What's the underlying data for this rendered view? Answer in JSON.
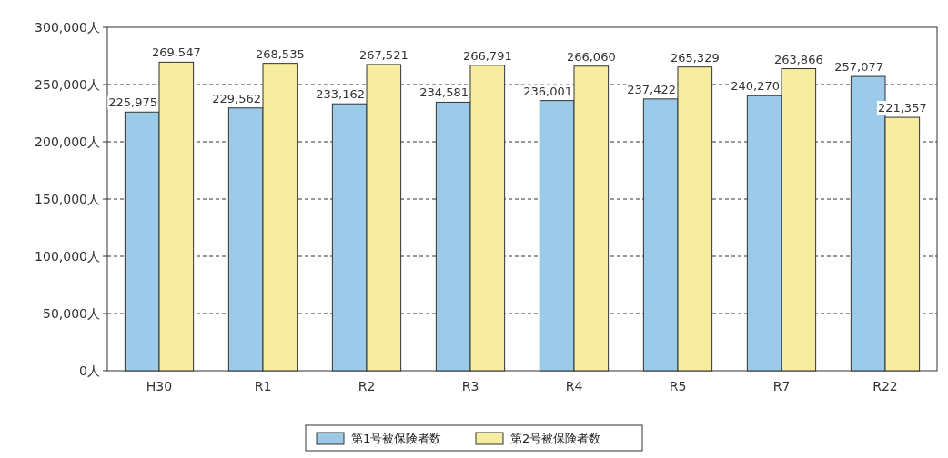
{
  "chart_data": {
    "type": "bar",
    "categories": [
      "H30",
      "R1",
      "R2",
      "R3",
      "R4",
      "R5",
      "R7",
      "R22"
    ],
    "series": [
      {
        "name": "第1号被保険者数",
        "color": "#9ccbea",
        "values": [
          225975,
          229562,
          233162,
          234581,
          236001,
          237422,
          240270,
          257077
        ],
        "value_labels": [
          "225,975",
          "229,562",
          "233,162",
          "234,581",
          "236,001",
          "237,422",
          "240,270",
          "257,077"
        ]
      },
      {
        "name": "第2号被保険者数",
        "color": "#f6eda0",
        "values": [
          269547,
          268535,
          267521,
          266791,
          266060,
          265329,
          263866,
          221357
        ],
        "value_labels": [
          "269,547",
          "268,535",
          "267,521",
          "266,791",
          "266,060",
          "265,329",
          "263,866",
          "221,357"
        ]
      }
    ],
    "ylim": [
      0,
      300000
    ],
    "yticks": [
      {
        "value": 0,
        "label": "0人"
      },
      {
        "value": 50000,
        "label": "50,000人"
      },
      {
        "value": 100000,
        "label": "100,000人"
      },
      {
        "value": 150000,
        "label": "150,000人"
      },
      {
        "value": 200000,
        "label": "200,000人"
      },
      {
        "value": 250000,
        "label": "250,000人"
      },
      {
        "value": 300000,
        "label": "300,000人"
      }
    ],
    "grid": "y",
    "legend": "bottom"
  }
}
